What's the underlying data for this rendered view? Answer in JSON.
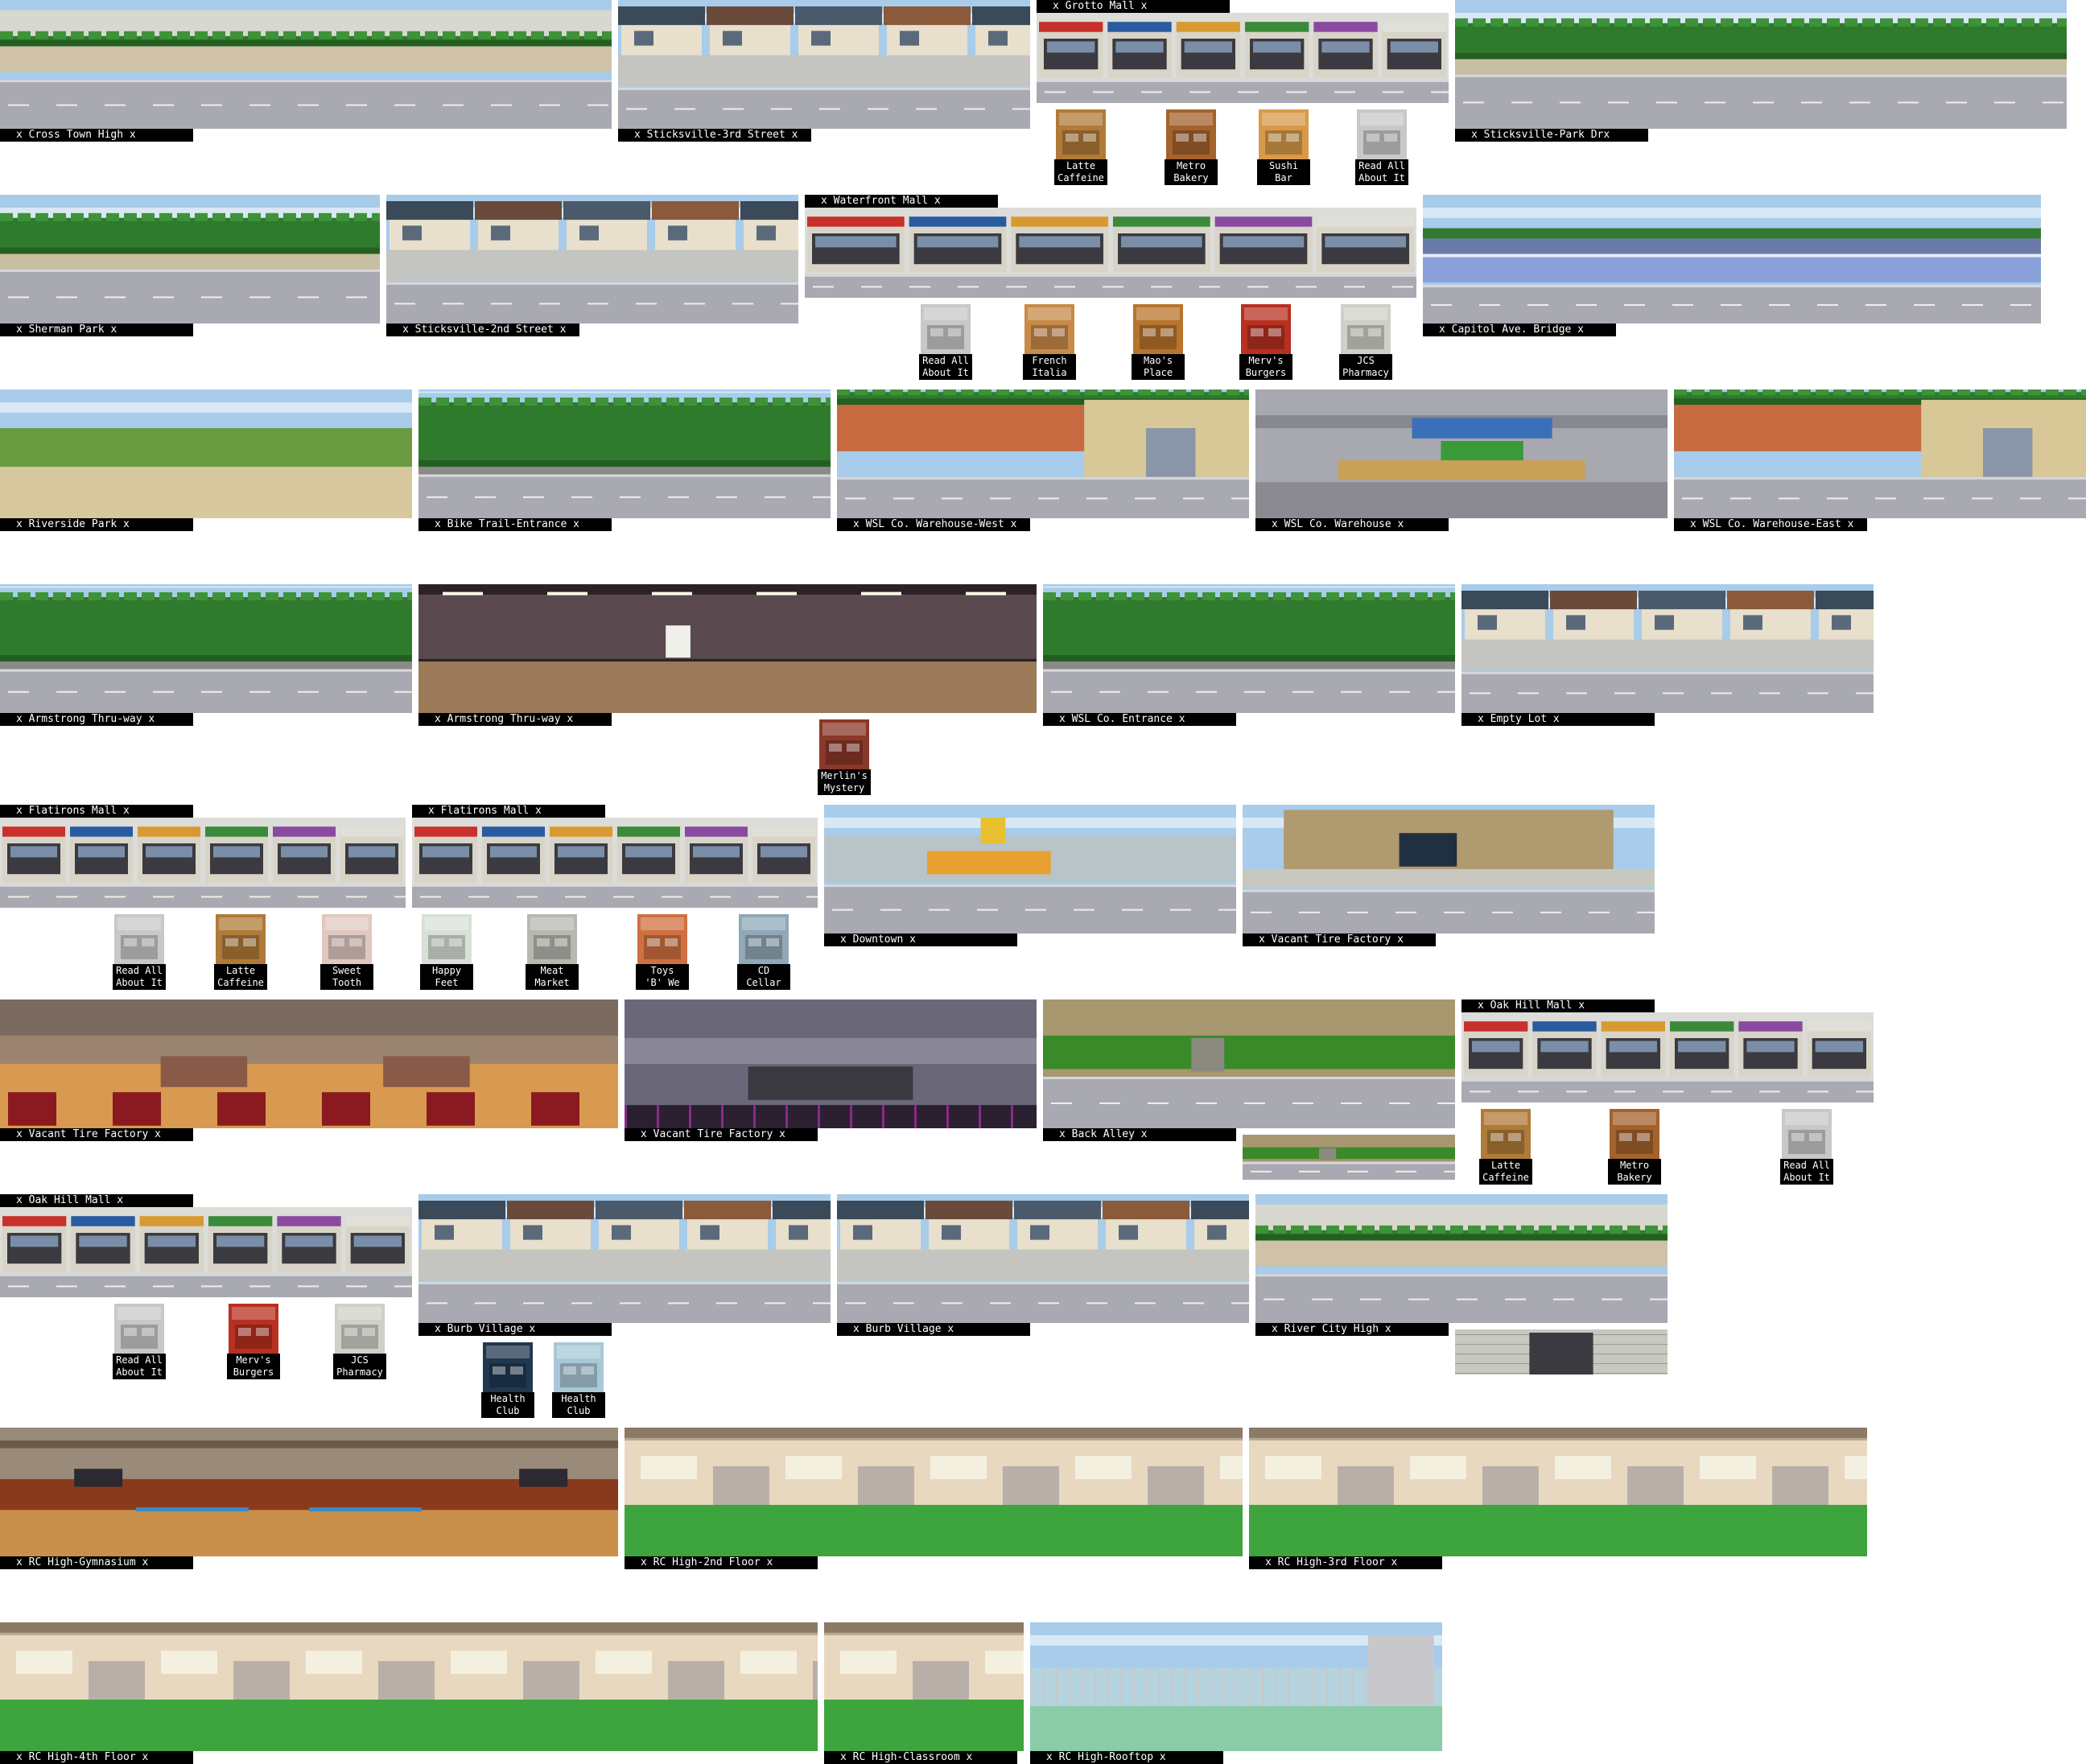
{
  "strips": [
    {
      "label": "x Cross Town High x",
      "theme": "school_ext"
    },
    {
      "label": "x Sticksville-3rd Street x",
      "theme": "houses"
    },
    {
      "label": "x Grotto Mall x",
      "theme": "mall"
    },
    {
      "label": "x Sticksville-Park Drx",
      "theme": "park"
    },
    {
      "label": "x Sherman Park x",
      "theme": "park"
    },
    {
      "label": "x Sticksville-2nd Street x",
      "theme": "houses"
    },
    {
      "label": "x Waterfront Mall x",
      "theme": "mall"
    },
    {
      "label": "x Capitol Ave. Bridge x",
      "theme": "bridge"
    },
    {
      "label": "x Riverside Park x",
      "theme": "field"
    },
    {
      "label": "x Bike Trail-Entrance x",
      "theme": "trees"
    },
    {
      "label": "x WSL Co. Warehouse-West x",
      "theme": "warehouse"
    },
    {
      "label": "x WSL Co. Warehouse x",
      "theme": "warehouse_in"
    },
    {
      "label": "x WSL Co. Warehouse-East x",
      "theme": "warehouse"
    },
    {
      "label": "x Armstrong Thru-way x",
      "theme": "trees"
    },
    {
      "label": "x Armstrong Thru-way x",
      "theme": "tunnel"
    },
    {
      "label": "x WSL Co. Entrance x",
      "theme": "trees"
    },
    {
      "label": "x Empty Lot x",
      "theme": "houses"
    },
    {
      "label": "x Flatirons Mall x",
      "theme": "mall"
    },
    {
      "label": "x Flatirons Mall x",
      "theme": "mall"
    },
    {
      "label": "x Downtown x",
      "theme": "construction"
    },
    {
      "label": "x Vacant Tire Factory x",
      "theme": "factory_ext"
    },
    {
      "label": "x Vacant Tire Factory x",
      "theme": "factory_in"
    },
    {
      "label": "x Vacant Tire Factory x",
      "theme": "factory_dark"
    },
    {
      "label": "x Back Alley x",
      "theme": "alley"
    },
    {
      "label": "x Oak Hill Mall x",
      "theme": "mall"
    },
    {
      "label": "x Oak Hill Mall x",
      "theme": "mall"
    },
    {
      "label": "x Burb Village x",
      "theme": "houses"
    },
    {
      "label": "x Burb Village x",
      "theme": "houses"
    },
    {
      "label": "x River City High x",
      "theme": "school_ext"
    },
    {
      "label": "x RC High-Gymnasium x",
      "theme": "gym"
    },
    {
      "label": "x RC High-2nd Floor x",
      "theme": "hall"
    },
    {
      "label": "x RC High-3rd Floor x",
      "theme": "hall"
    },
    {
      "label": "x RC High-4th Floor x",
      "theme": "hall"
    },
    {
      "label": "x RC High-Classroom x",
      "theme": "hall"
    },
    {
      "label": "x RC High-Rooftop x",
      "theme": "rooftop"
    }
  ],
  "extras": [
    {
      "theme": "alley"
    },
    {
      "theme": "wall"
    }
  ],
  "shops": [
    {
      "label": "Latte\nCaffeine",
      "icon": "cafe-shop-icon",
      "color": "#b07a38"
    },
    {
      "label": "Metro\nBakery",
      "icon": "bakery-shop-icon",
      "color": "#a4622c"
    },
    {
      "label": "Sushi Bar",
      "icon": "sushi-shop-icon",
      "color": "#d89a48"
    },
    {
      "label": "Read All\nAbout It",
      "icon": "bookstore-icon",
      "color": "#c8c8c8"
    },
    {
      "label": "Read All\nAbout It",
      "icon": "bookstore-icon",
      "color": "#c8c8c8"
    },
    {
      "label": "French\nItalia",
      "icon": "restaurant-icon",
      "color": "#c88a48"
    },
    {
      "label": "Mao's\nPlace",
      "icon": "restaurant-icon",
      "color": "#b8742c"
    },
    {
      "label": "Merv's\nBurgers",
      "icon": "burger-shop-icon",
      "color": "#b83020"
    },
    {
      "label": "JCS\nPharmacy",
      "icon": "pharmacy-icon",
      "color": "#d0d0c8"
    },
    {
      "label": "Merlin's\nMystery",
      "icon": "mystery-shop-icon",
      "color": "#8a3828"
    },
    {
      "label": "Read All\nAbout It",
      "icon": "bookstore-icon",
      "color": "#c8c8c8"
    },
    {
      "label": "Latte\nCaffeine",
      "icon": "cafe-shop-icon",
      "color": "#b07a38"
    },
    {
      "label": "Sweet\nTooth",
      "icon": "candy-shop-icon",
      "color": "#e0c8c0"
    },
    {
      "label": "Happy\nFeet",
      "icon": "shoe-shop-icon",
      "color": "#d8e0d8"
    },
    {
      "label": "Meat\nMarket",
      "icon": "meat-shop-icon",
      "color": "#b8b8b0"
    },
    {
      "label": "Toys\n'B' We",
      "icon": "toy-shop-icon",
      "color": "#d07040"
    },
    {
      "label": "CD\nCellar",
      "icon": "music-shop-icon",
      "color": "#90a8b8"
    },
    {
      "label": "Latte\nCaffeine",
      "icon": "cafe-shop-icon",
      "color": "#b07a38"
    },
    {
      "label": "Metro\nBakery",
      "icon": "bakery-shop-icon",
      "color": "#a4622c"
    },
    {
      "label": "Read All\nAbout It",
      "icon": "bookstore-icon",
      "color": "#c8c8c8"
    },
    {
      "label": "Read All\nAbout It",
      "icon": "bookstore-icon",
      "color": "#c8c8c8"
    },
    {
      "label": "Merv's\nBurgers",
      "icon": "burger-shop-icon",
      "color": "#b83020"
    },
    {
      "label": "JCS\nPharmacy",
      "icon": "pharmacy-icon",
      "color": "#d0d0c8"
    },
    {
      "label": "Health\nClub",
      "icon": "gym-shop-icon",
      "color": "#203850"
    },
    {
      "label": "Health\nClub",
      "icon": "pool-shop-icon",
      "color": "#a8c8d8"
    }
  ],
  "colors": {
    "label_bg": "#000000",
    "label_fg": "#ffffff",
    "sky": "#9cc4e8",
    "road": "#a8a8b0",
    "grass": "#3c8a34",
    "floor": "#44a844"
  }
}
